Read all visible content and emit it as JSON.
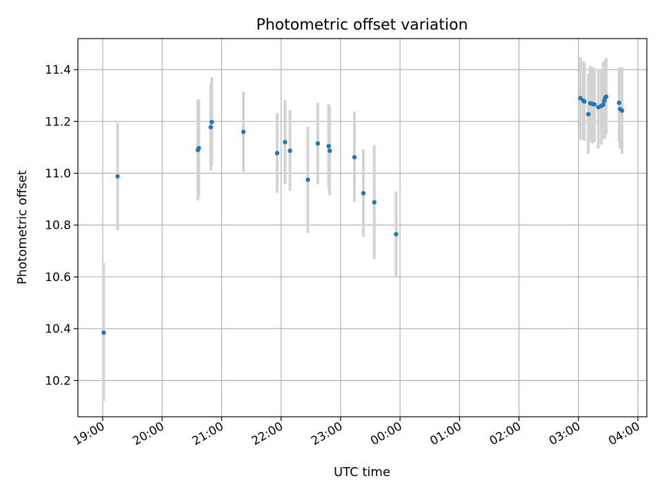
{
  "chart_data": {
    "type": "scatter",
    "title": "Photometric offset variation",
    "xlabel": "UTC time",
    "ylabel": "Photometric offset",
    "x_tick_labels": [
      "19:00",
      "20:00",
      "21:00",
      "22:00",
      "23:00",
      "00:00",
      "01:00",
      "02:00",
      "03:00",
      "04:00"
    ],
    "xlim": [
      "18:35",
      "04:09"
    ],
    "y_ticks": [
      10.2,
      10.4,
      10.6,
      10.8,
      11.0,
      11.2,
      11.4
    ],
    "ylim": [
      10.06,
      11.52
    ],
    "grid": true,
    "colors": {
      "points": "#1f77b4",
      "errorbars": "#d3d3d3",
      "grid": "#b0b0b0"
    },
    "points": [
      {
        "x": "19:01",
        "y": 10.385,
        "lo": 10.12,
        "hi": 10.655
      },
      {
        "x": "19:15",
        "y": 10.988,
        "lo": 10.78,
        "hi": 11.195
      },
      {
        "x": "20:36",
        "y": 11.09,
        "lo": 10.895,
        "hi": 11.285
      },
      {
        "x": "20:37",
        "y": 11.097,
        "lo": 10.91,
        "hi": 11.285
      },
      {
        "x": "20:49",
        "y": 11.178,
        "lo": 11.01,
        "hi": 11.345
      },
      {
        "x": "20:50",
        "y": 11.198,
        "lo": 11.03,
        "hi": 11.37
      },
      {
        "x": "21:22",
        "y": 11.16,
        "lo": 11.005,
        "hi": 11.315
      },
      {
        "x": "21:56",
        "y": 11.078,
        "lo": 10.925,
        "hi": 11.232
      },
      {
        "x": "22:04",
        "y": 11.12,
        "lo": 10.958,
        "hi": 11.283
      },
      {
        "x": "22:09",
        "y": 11.087,
        "lo": 10.932,
        "hi": 11.243
      },
      {
        "x": "22:27",
        "y": 10.975,
        "lo": 10.77,
        "hi": 11.18
      },
      {
        "x": "22:37",
        "y": 11.115,
        "lo": 10.958,
        "hi": 11.272
      },
      {
        "x": "22:48",
        "y": 11.105,
        "lo": 10.94,
        "hi": 11.268
      },
      {
        "x": "22:49",
        "y": 11.087,
        "lo": 10.915,
        "hi": 11.26
      },
      {
        "x": "23:14",
        "y": 11.062,
        "lo": 10.89,
        "hi": 11.238
      },
      {
        "x": "23:23",
        "y": 10.923,
        "lo": 10.755,
        "hi": 11.092
      },
      {
        "x": "23:34",
        "y": 10.888,
        "lo": 10.668,
        "hi": 11.108
      },
      {
        "x": "23:56",
        "y": 10.765,
        "lo": 10.6,
        "hi": 10.93
      },
      {
        "x": "03:02",
        "y": 11.29,
        "lo": 11.13,
        "hi": 11.448
      },
      {
        "x": "03:05",
        "y": 11.28,
        "lo": 11.128,
        "hi": 11.432
      },
      {
        "x": "03:06",
        "y": 11.277,
        "lo": 11.125,
        "hi": 11.425
      },
      {
        "x": "03:10",
        "y": 11.228,
        "lo": 11.075,
        "hi": 11.385
      },
      {
        "x": "03:12",
        "y": 11.27,
        "lo": 11.12,
        "hi": 11.415
      },
      {
        "x": "03:14",
        "y": 11.268,
        "lo": 11.115,
        "hi": 11.41
      },
      {
        "x": "03:16",
        "y": 11.266,
        "lo": 11.12,
        "hi": 11.405
      },
      {
        "x": "03:20",
        "y": 11.255,
        "lo": 11.095,
        "hi": 11.402
      },
      {
        "x": "03:23",
        "y": 11.26,
        "lo": 11.11,
        "hi": 11.398
      },
      {
        "x": "03:25",
        "y": 11.265,
        "lo": 11.13,
        "hi": 11.43
      },
      {
        "x": "03:26",
        "y": 11.28,
        "lo": 11.14,
        "hi": 11.42
      },
      {
        "x": "03:27",
        "y": 11.292,
        "lo": 11.135,
        "hi": 11.44
      },
      {
        "x": "03:28",
        "y": 11.296,
        "lo": 11.15,
        "hi": 11.445
      },
      {
        "x": "03:41",
        "y": 11.272,
        "lo": 11.12,
        "hi": 11.405
      },
      {
        "x": "03:42",
        "y": 11.248,
        "lo": 11.095,
        "hi": 11.41
      },
      {
        "x": "03:44",
        "y": 11.242,
        "lo": 11.075,
        "hi": 11.41
      }
    ]
  }
}
